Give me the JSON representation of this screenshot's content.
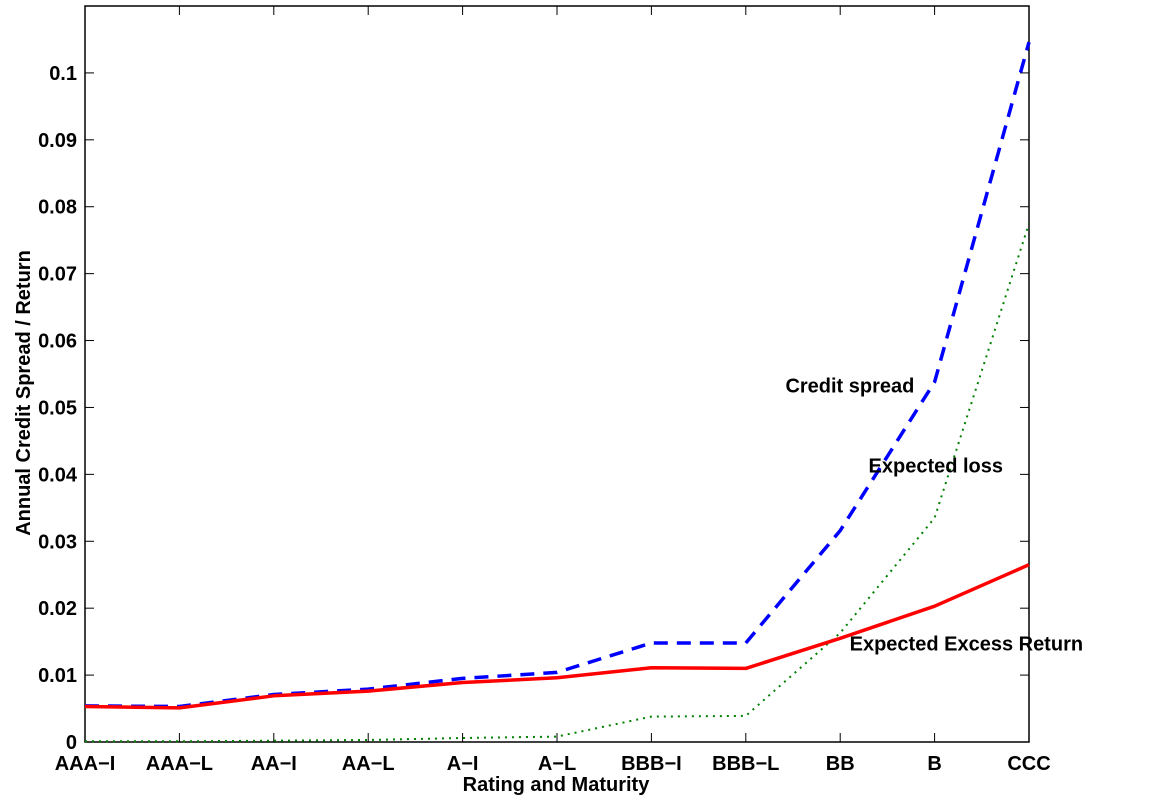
{
  "chart_data": {
    "type": "line",
    "title": "",
    "xlabel": "Rating and Maturity",
    "ylabel": "Annual Credit Spread / Return",
    "categories": [
      "AAA−I",
      "AAA−L",
      "AA−I",
      "AA−L",
      "A−I",
      "A−L",
      "BBB−I",
      "BBB−L",
      "BB",
      "B",
      "CCC"
    ],
    "ylim": [
      0,
      0.11
    ],
    "yticks": [
      0,
      0.01,
      0.02,
      0.03,
      0.04,
      0.05,
      0.06,
      0.07,
      0.08,
      0.09,
      0.1
    ],
    "ytick_labels": [
      "0",
      "0.01",
      "0.02",
      "0.03",
      "0.04",
      "0.05",
      "0.06",
      "0.07",
      "0.08",
      "0.09",
      "0.1"
    ],
    "grid": false,
    "series": [
      {
        "name": "Credit spread",
        "color": "#0000ff",
        "style": "dashed",
        "values": [
          0.0054,
          0.0053,
          0.0071,
          0.0079,
          0.0095,
          0.0104,
          0.0148,
          0.0148,
          0.0316,
          0.0538,
          0.1046
        ]
      },
      {
        "name": "Expected loss",
        "color": "#008000",
        "style": "dotted",
        "values": [
          0.0001,
          0.0001,
          0.0002,
          0.0003,
          0.0006,
          0.0008,
          0.0038,
          0.0039,
          0.0163,
          0.0335,
          0.0775
        ]
      },
      {
        "name": "Expected Excess Return",
        "color": "#ff0000",
        "style": "solid",
        "values": [
          0.0053,
          0.0051,
          0.0069,
          0.0076,
          0.0089,
          0.0096,
          0.0111,
          0.011,
          0.0155,
          0.0203,
          0.0265
        ]
      }
    ],
    "annotations": [
      {
        "text": "Credit spread",
        "x": 7.42,
        "y": 0.0522
      },
      {
        "text": "Expected loss",
        "x": 8.3,
        "y": 0.0403
      },
      {
        "text": "Expected Excess Return",
        "x": 8.1,
        "y": 0.0137
      }
    ]
  }
}
